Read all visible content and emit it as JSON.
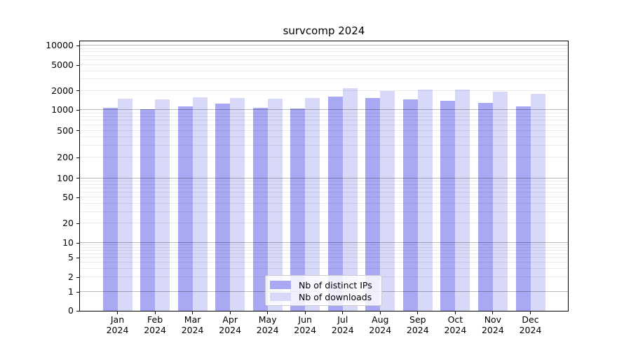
{
  "title": "survcomp 2024",
  "chart_data": {
    "type": "bar",
    "title": "survcomp 2024",
    "y_scale": "symlog",
    "ylim": [
      0,
      10000
    ],
    "grid": true,
    "legend_position": "lower center",
    "y_ticks": [
      0,
      1,
      2,
      5,
      10,
      20,
      50,
      100,
      200,
      500,
      1000,
      2000,
      5000,
      10000
    ],
    "categories": [
      {
        "line1": "Jan",
        "line2": "2024"
      },
      {
        "line1": "Feb",
        "line2": "2024"
      },
      {
        "line1": "Mar",
        "line2": "2024"
      },
      {
        "line1": "Apr",
        "line2": "2024"
      },
      {
        "line1": "May",
        "line2": "2024"
      },
      {
        "line1": "Jun",
        "line2": "2024"
      },
      {
        "line1": "Jul",
        "line2": "2024"
      },
      {
        "line1": "Aug",
        "line2": "2024"
      },
      {
        "line1": "Sep",
        "line2": "2024"
      },
      {
        "line1": "Oct",
        "line2": "2024"
      },
      {
        "line1": "Nov",
        "line2": "2024"
      },
      {
        "line1": "Dec",
        "line2": "2024"
      }
    ],
    "series": [
      {
        "name": "Nb of distinct IPs",
        "color": "#a8a8f3",
        "values": [
          1080,
          1030,
          1150,
          1250,
          1100,
          1060,
          1610,
          1530,
          1470,
          1380,
          1300,
          1150
        ]
      },
      {
        "name": "Nb of downloads",
        "color": "#d8d8f9",
        "values": [
          1510,
          1450,
          1600,
          1540,
          1500,
          1550,
          2180,
          1960,
          2100,
          2100,
          1950,
          1780
        ]
      }
    ]
  }
}
